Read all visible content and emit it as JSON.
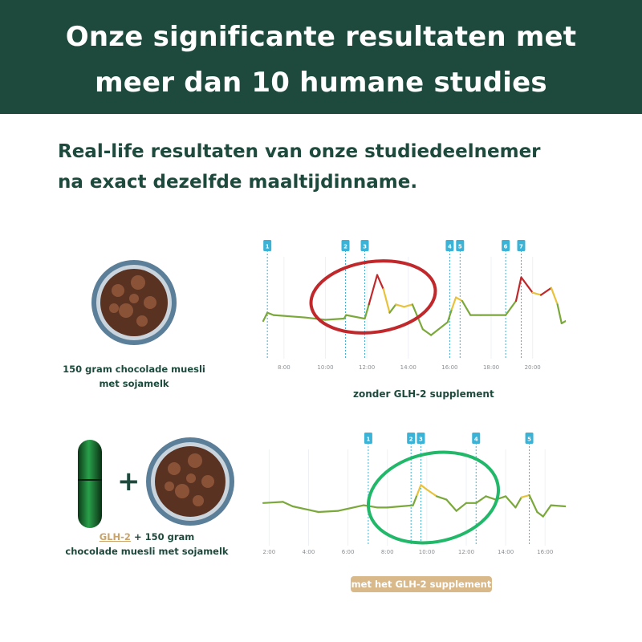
{
  "header": {
    "title_line1": "Onze significante resultaten met",
    "title_line2": "meer dan 10 humane studies"
  },
  "subtitle": {
    "line1": "Real-life resultaten van onze studiedeelnemer",
    "line2": "na exact dezelfde maaltijdinname."
  },
  "meal1": {
    "caption_line1": "150 gram chocolade muesli",
    "caption_line2": "met sojamelk"
  },
  "meal2": {
    "glh": "GLH-2",
    "caption_line1_rest": "+ 150 gram",
    "caption_line2": "chocolade muesli met sojamelk",
    "plus": "+"
  },
  "colors": {
    "header": "#1d4a3d",
    "accent": "#d9b98a",
    "marker": "#3bb3d6",
    "circle_without": "#c0282b",
    "circle_with": "#22b86a",
    "line_low": "#7aa83a",
    "line_mid": "#e8c23a",
    "line_high": "#c0282b"
  },
  "chart_data": [
    {
      "type": "line",
      "label": "zonder  GLH-2 supplement",
      "xlim": [
        7.0,
        21.6
      ],
      "x_ticks": [
        "8:00",
        "10:00",
        "12:00",
        "14:00",
        "16:00",
        "18:00",
        "20:00"
      ],
      "markers": [
        {
          "label": "1",
          "x": 7.2
        },
        {
          "label": "2",
          "x": 10.97
        },
        {
          "label": "3",
          "x": 11.9
        },
        {
          "label": "4",
          "x": 16.0
        },
        {
          "label": "5",
          "x": 16.5
        },
        {
          "label": "6",
          "x": 18.7
        },
        {
          "label": "7",
          "x": 19.45
        }
      ],
      "points": [
        [
          7.0,
          32
        ],
        [
          7.2,
          39
        ],
        [
          7.5,
          37
        ],
        [
          9.0,
          35
        ],
        [
          10.0,
          33
        ],
        [
          10.9,
          34
        ],
        [
          11.0,
          37
        ],
        [
          11.9,
          34
        ],
        [
          12.1,
          46
        ],
        [
          12.5,
          71
        ],
        [
          12.8,
          59
        ],
        [
          13.1,
          39
        ],
        [
          13.4,
          46
        ],
        [
          13.8,
          44
        ],
        [
          14.2,
          46
        ],
        [
          14.7,
          25
        ],
        [
          15.1,
          20
        ],
        [
          15.9,
          31
        ],
        [
          16.1,
          42
        ],
        [
          16.3,
          52
        ],
        [
          16.6,
          49
        ],
        [
          17.0,
          37
        ],
        [
          17.5,
          37
        ],
        [
          18.7,
          37
        ],
        [
          19.2,
          49
        ],
        [
          19.45,
          69
        ],
        [
          20.0,
          56
        ],
        [
          20.4,
          54
        ],
        [
          20.9,
          60
        ],
        [
          21.2,
          46
        ],
        [
          21.4,
          30
        ],
        [
          21.6,
          32
        ]
      ]
    },
    {
      "type": "line",
      "label": "met het GLH-2 supplement",
      "xlim": [
        1.7,
        17.05
      ],
      "x_ticks": [
        "2:00",
        "4:00",
        "6:00",
        "8:00",
        "10:00",
        "12:00",
        "14:00",
        "16:00"
      ],
      "markers": [
        {
          "label": "1",
          "x": 7.03
        },
        {
          "label": "2",
          "x": 9.2
        },
        {
          "label": "3",
          "x": 9.7
        },
        {
          "label": "4",
          "x": 12.5
        },
        {
          "label": "5",
          "x": 15.2
        }
      ],
      "points": [
        [
          1.7,
          38
        ],
        [
          2.7,
          39
        ],
        [
          3.2,
          35
        ],
        [
          4.5,
          30
        ],
        [
          5.5,
          31
        ],
        [
          6.8,
          36
        ],
        [
          7.5,
          34
        ],
        [
          8.0,
          34
        ],
        [
          9.3,
          36
        ],
        [
          9.5,
          45
        ],
        [
          9.7,
          54
        ],
        [
          10.0,
          50
        ],
        [
          10.5,
          44
        ],
        [
          11.0,
          41
        ],
        [
          11.5,
          31
        ],
        [
          12.0,
          38
        ],
        [
          12.5,
          38
        ],
        [
          13.0,
          44
        ],
        [
          13.5,
          41
        ],
        [
          14.0,
          44
        ],
        [
          14.5,
          34
        ],
        [
          14.8,
          43
        ],
        [
          15.2,
          45
        ],
        [
          15.6,
          30
        ],
        [
          15.9,
          26
        ],
        [
          16.3,
          36
        ],
        [
          17.05,
          35
        ]
      ]
    }
  ]
}
